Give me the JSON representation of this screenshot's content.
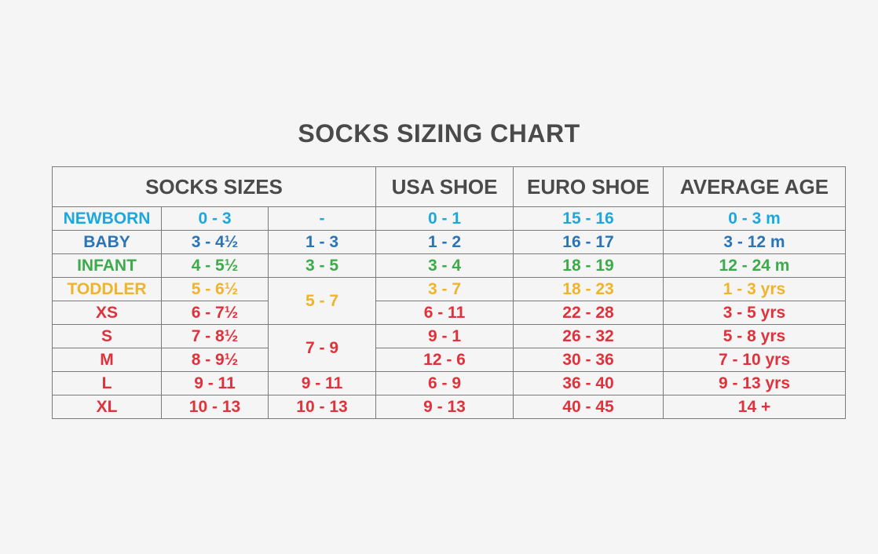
{
  "title": "SOCKS SIZING CHART",
  "headers": {
    "socks_sizes": "SOCKS SIZES",
    "usa_shoe": "USA SHOE",
    "euro_shoe": "EURO SHOE",
    "average_age": "AVERAGE AGE"
  },
  "colors": {
    "newborn": "#1ea7dc",
    "baby": "#2b74b5",
    "infant": "#3cab49",
    "toddler": "#efb42c",
    "adult": "#e0323c",
    "header": "#4a4a4a"
  },
  "rows": [
    {
      "label": "NEWBORN",
      "size": "0 - 3",
      "alt": "-",
      "usa": "0 - 1",
      "euro": "15 - 16",
      "age": "0 - 3 m"
    },
    {
      "label": "BABY",
      "size": "3 - 4½",
      "alt": "1 - 3",
      "usa": "1 - 2",
      "euro": "16 - 17",
      "age": "3 - 12 m"
    },
    {
      "label": "INFANT",
      "size": "4 - 5½",
      "alt": "3 - 5",
      "usa": "3 - 4",
      "euro": "18 - 19",
      "age": "12 - 24 m"
    },
    {
      "label": "TODDLER",
      "size": "5 - 6½",
      "alt": "5 - 7",
      "usa": "3 - 7",
      "euro": "18 - 23",
      "age": "1 - 3 yrs"
    },
    {
      "label": "XS",
      "size": "6 - 7½",
      "usa": "6 - 11",
      "euro": "22 - 28",
      "age": "3 - 5 yrs"
    },
    {
      "label": "S",
      "size": "7 - 8½",
      "alt": "7 - 9",
      "usa": "9 - 1",
      "euro": "26 - 32",
      "age": "5 - 8 yrs"
    },
    {
      "label": "M",
      "size": "8 - 9½",
      "usa": "12 - 6",
      "euro": "30 - 36",
      "age": "7 - 10 yrs"
    },
    {
      "label": "L",
      "size": "9 - 11",
      "alt": "9 - 11",
      "usa": "6 - 9",
      "euro": "36 - 40",
      "age": "9 - 13 yrs"
    },
    {
      "label": "XL",
      "size": "10 - 13",
      "alt": "10 - 13",
      "usa": "9 - 13",
      "euro": "40 - 45",
      "age": "14 +"
    }
  ]
}
